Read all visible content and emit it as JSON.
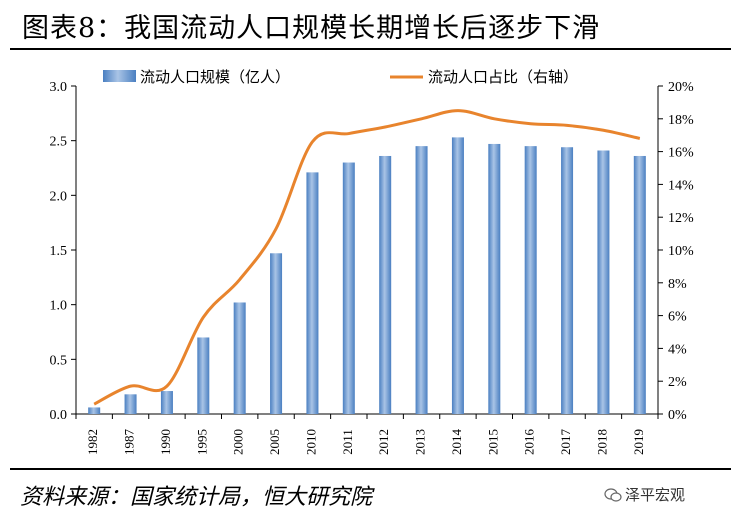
{
  "header": {
    "title": "图表8：我国流动人口规模长期增长后逐步下滑"
  },
  "chart_data": {
    "type": "bar+line",
    "title": "图表8：我国流动人口规模长期增长后逐步下滑",
    "categories": [
      "1982",
      "1987",
      "1990",
      "1995",
      "2000",
      "2005",
      "2010",
      "2011",
      "2012",
      "2013",
      "2014",
      "2015",
      "2016",
      "2017",
      "2018",
      "2019"
    ],
    "series": [
      {
        "name": "流动人口规模（亿人）",
        "type": "bar",
        "axis": "left",
        "values": [
          0.06,
          0.18,
          0.21,
          0.7,
          1.02,
          1.47,
          2.21,
          2.3,
          2.36,
          2.45,
          2.53,
          2.47,
          2.45,
          2.44,
          2.41,
          2.36
        ]
      },
      {
        "name": "流动人口占比（右轴）",
        "type": "line",
        "axis": "right",
        "values": [
          0.6,
          1.7,
          1.7,
          5.9,
          8.2,
          11.3,
          16.6,
          17.1,
          17.5,
          18.0,
          18.5,
          18.0,
          17.7,
          17.6,
          17.3,
          16.8
        ]
      }
    ],
    "y_left": {
      "ylim": [
        0,
        3.0
      ],
      "ticks": [
        "0.0",
        "0.5",
        "1.0",
        "1.5",
        "2.0",
        "2.5",
        "3.0"
      ]
    },
    "y_right": {
      "ylim": [
        0,
        20
      ],
      "ticks": [
        "0%",
        "2%",
        "4%",
        "6%",
        "8%",
        "10%",
        "12%",
        "14%",
        "16%",
        "18%",
        "20%"
      ]
    },
    "legend_position": "top",
    "colors": {
      "bar": "#4a7fc1",
      "bar_light": "#a9c4e6",
      "line": "#e8842d"
    }
  },
  "footer": {
    "source": "资料来源：国家统计局，恒大研究院",
    "watermark": "泽平宏观"
  }
}
